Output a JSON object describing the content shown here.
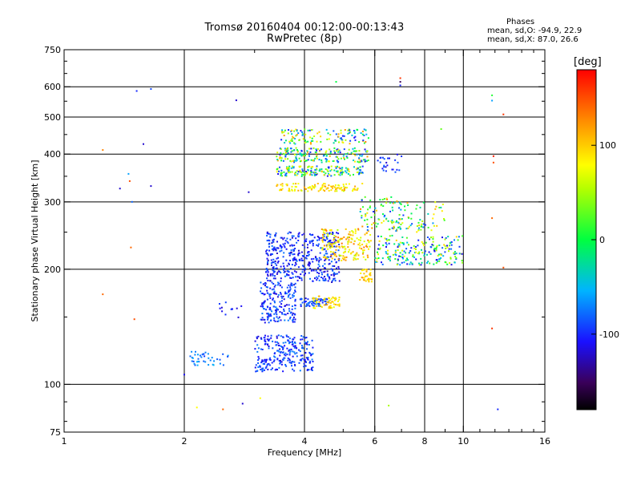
{
  "figure": {
    "title_line1": "Tromsø 20160404 00:12:00-00:13:43",
    "title_line2": "RwPretec (8p)",
    "stats_header": "Phases",
    "stats_o": "mean, sd,O: -94.9, 22.9",
    "stats_x": "mean, sd,X:  87.0, 26.6",
    "colorbar": {
      "unit_label": "[deg]",
      "min": -180,
      "max": 180,
      "ticks": [
        100,
        0,
        -100
      ],
      "tick_labels": [
        "100",
        "0",
        "-100"
      ]
    }
  },
  "chart_data": {
    "type": "scatter",
    "xlabel": "Frequency [MHz]",
    "ylabel": "Stationary phase Virtual Height [km]",
    "xscale": "log",
    "yscale": "log",
    "xlim": [
      1,
      16
    ],
    "ylim": [
      75,
      750
    ],
    "xticks": [
      1,
      2,
      4,
      6,
      8,
      10,
      16
    ],
    "xtick_labels": [
      "1",
      "2",
      "4",
      "6",
      "8",
      "10",
      "16"
    ],
    "xgrid": [
      2,
      4,
      6,
      8,
      10
    ],
    "yticks": [
      75,
      100,
      200,
      300,
      400,
      500,
      600,
      750
    ],
    "ytick_labels": [
      "75",
      "100",
      "200",
      "300",
      "400",
      "500",
      "600",
      "750"
    ],
    "ygrid": [
      100,
      200,
      300,
      400,
      500,
      600
    ],
    "grid": true,
    "color_encoding": "phase in degrees (rainbow colormap, -180 to 180)",
    "clusters": [
      {
        "f": [
          2.05,
          2.6
        ],
        "h": [
          112,
          122
        ],
        "phase": [
          -95,
          -50
        ],
        "n": 40
      },
      {
        "f": [
          2.45,
          2.8
        ],
        "h": [
          148,
          165
        ],
        "phase": [
          -120,
          -90
        ],
        "n": 12
      },
      {
        "f": [
          3.0,
          4.2
        ],
        "h": [
          108,
          135
        ],
        "phase": [
          -120,
          -70
        ],
        "n": 260
      },
      {
        "f": [
          3.1,
          3.8
        ],
        "h": [
          145,
          185
        ],
        "phase": [
          -120,
          -70
        ],
        "n": 190
      },
      {
        "f": [
          3.9,
          4.6
        ],
        "h": [
          160,
          168
        ],
        "phase": [
          -110,
          -70
        ],
        "n": 60
      },
      {
        "f": [
          4.2,
          4.9
        ],
        "h": [
          158,
          170
        ],
        "phase": [
          70,
          120
        ],
        "n": 55
      },
      {
        "f": [
          3.2,
          4.9
        ],
        "h": [
          185,
          250
        ],
        "phase": [
          -125,
          -75
        ],
        "n": 430
      },
      {
        "f": [
          4.4,
          5.9
        ],
        "h": [
          210,
          255
        ],
        "phase": [
          50,
          140
        ],
        "n": 170
      },
      {
        "f": [
          5.5,
          5.9
        ],
        "h": [
          185,
          200
        ],
        "phase": [
          80,
          120
        ],
        "n": 30
      },
      {
        "f": [
          3.4,
          5.6
        ],
        "h": [
          320,
          335
        ],
        "phase": [
          60,
          120
        ],
        "n": 110
      },
      {
        "f": [
          3.4,
          5.6
        ],
        "h": [
          350,
          372
        ],
        "phase": [
          -120,
          110
        ],
        "n": 170
      },
      {
        "f": [
          3.4,
          5.8
        ],
        "h": [
          380,
          415
        ],
        "phase": [
          -120,
          120
        ],
        "n": 190
      },
      {
        "f": [
          3.5,
          5.8
        ],
        "h": [
          425,
          465
        ],
        "phase": [
          -110,
          130
        ],
        "n": 120
      },
      {
        "f": [
          5.5,
          7.0
        ],
        "h": [
          250,
          310
        ],
        "phase": [
          -100,
          140
        ],
        "n": 80
      },
      {
        "f": [
          6.0,
          10.0
        ],
        "h": [
          205,
          245
        ],
        "phase": [
          -120,
          100
        ],
        "n": 210
      },
      {
        "f": [
          6.5,
          9.0
        ],
        "h": [
          250,
          300
        ],
        "phase": [
          -100,
          120
        ],
        "n": 70
      },
      {
        "f": [
          6.0,
          7.0
        ],
        "h": [
          355,
          400
        ],
        "phase": [
          -120,
          -80
        ],
        "n": 25
      }
    ],
    "isolated_points": [
      {
        "f": 1.25,
        "h": 410,
        "phase": 130
      },
      {
        "f": 1.25,
        "h": 172,
        "phase": 140
      },
      {
        "f": 1.38,
        "h": 325,
        "phase": -120
      },
      {
        "f": 1.45,
        "h": 355,
        "phase": -60
      },
      {
        "f": 1.46,
        "h": 340,
        "phase": 150
      },
      {
        "f": 1.48,
        "h": 300,
        "phase": -80
      },
      {
        "f": 1.47,
        "h": 228,
        "phase": 140
      },
      {
        "f": 1.5,
        "h": 148,
        "phase": 150
      },
      {
        "f": 1.52,
        "h": 585,
        "phase": -100
      },
      {
        "f": 1.58,
        "h": 425,
        "phase": -120
      },
      {
        "f": 1.65,
        "h": 330,
        "phase": -120
      },
      {
        "f": 1.65,
        "h": 592,
        "phase": -90
      },
      {
        "f": 2.0,
        "h": 106,
        "phase": -110
      },
      {
        "f": 2.15,
        "h": 87,
        "phase": 80
      },
      {
        "f": 2.5,
        "h": 86,
        "phase": 140
      },
      {
        "f": 2.7,
        "h": 553,
        "phase": -120
      },
      {
        "f": 2.8,
        "h": 89,
        "phase": -120
      },
      {
        "f": 2.9,
        "h": 318,
        "phase": -120
      },
      {
        "f": 3.1,
        "h": 92,
        "phase": 80
      },
      {
        "f": 4.8,
        "h": 618,
        "phase": 0
      },
      {
        "f": 6.5,
        "h": 88,
        "phase": 50
      },
      {
        "f": 6.95,
        "h": 632,
        "phase": 160
      },
      {
        "f": 6.95,
        "h": 618,
        "phase": -150
      },
      {
        "f": 6.95,
        "h": 605,
        "phase": -100
      },
      {
        "f": 8.8,
        "h": 465,
        "phase": 30
      },
      {
        "f": 11.8,
        "h": 570,
        "phase": 10
      },
      {
        "f": 11.8,
        "h": 552,
        "phase": -60
      },
      {
        "f": 11.9,
        "h": 395,
        "phase": 170
      },
      {
        "f": 11.9,
        "h": 380,
        "phase": 150
      },
      {
        "f": 11.8,
        "h": 272,
        "phase": 140
      },
      {
        "f": 11.8,
        "h": 140,
        "phase": 160
      },
      {
        "f": 12.2,
        "h": 86,
        "phase": -100
      },
      {
        "f": 12.6,
        "h": 508,
        "phase": 160
      },
      {
        "f": 12.6,
        "h": 202,
        "phase": 150
      }
    ]
  }
}
